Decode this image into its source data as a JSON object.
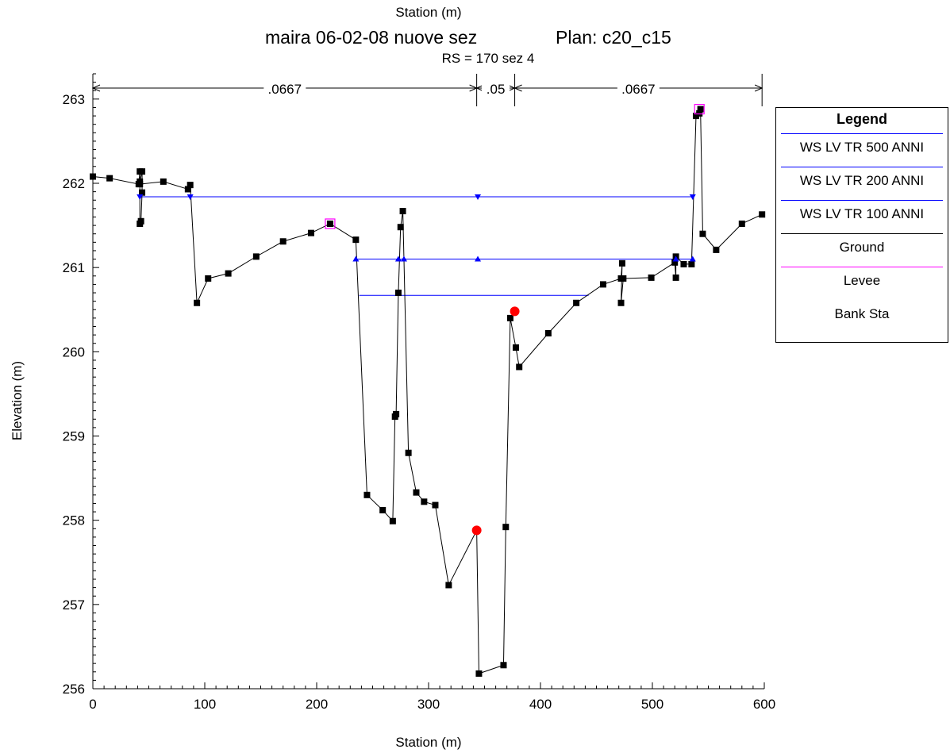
{
  "chart_data": {
    "type": "line",
    "title": "maira 06-02-08 nuove sez",
    "plan": "Plan: c20_c15",
    "subtitle": "RS = 170  sez 4",
    "xlabel": "Station (m)",
    "ylabel": "Elevation (m)",
    "xlim": [
      0,
      600
    ],
    "ylim": [
      256,
      263.3
    ],
    "xticks": [
      "0",
      "100",
      "200",
      "300",
      "400",
      "500",
      "600"
    ],
    "yticks": [
      "256",
      "257",
      "258",
      "259",
      "260",
      "261",
      "262",
      "263"
    ],
    "mannings": [
      {
        "label": ".0667",
        "x0": 0,
        "x1": 343
      },
      {
        "label": ".05",
        "x0": 343,
        "x1": 377
      },
      {
        "label": ".0667",
        "x0": 377,
        "x1": 598
      }
    ],
    "series": [
      {
        "name": "Ground",
        "color": "#000000",
        "marker": "square",
        "x": [
          0,
          15,
          41,
          42,
          42,
          43,
          44,
          44,
          42,
          42,
          63,
          85,
          87,
          93,
          103,
          121,
          146,
          170,
          195,
          212,
          235,
          245,
          259,
          268,
          270,
          271,
          273,
          275,
          277,
          282,
          289,
          296,
          306,
          318,
          343,
          345,
          367,
          369,
          373,
          378,
          381,
          407,
          432,
          456,
          472,
          473,
          472,
          474,
          499,
          520,
          521,
          521,
          528,
          535,
          539,
          542,
          543,
          545,
          557,
          580,
          598
        ],
        "y": [
          262.08,
          262.06,
          261.99,
          262.14,
          261.52,
          261.55,
          261.89,
          262.14,
          262.02,
          261.99,
          262.02,
          261.93,
          261.98,
          260.58,
          260.87,
          260.93,
          261.13,
          261.31,
          261.41,
          261.52,
          261.33,
          258.3,
          258.12,
          257.99,
          259.23,
          259.26,
          260.7,
          261.48,
          261.67,
          258.8,
          258.33,
          258.22,
          258.18,
          257.23,
          257.88,
          256.18,
          256.28,
          257.92,
          260.4,
          260.05,
          259.82,
          260.22,
          260.58,
          260.8,
          260.87,
          261.05,
          260.58,
          260.87,
          260.88,
          261.06,
          260.88,
          261.13,
          261.04,
          261.04,
          262.8,
          262.83,
          262.88,
          261.4,
          261.21,
          261.52,
          261.63
        ]
      },
      {
        "name": "WS LV TR 500 ANNI",
        "color": "#0000ff",
        "marker": "triangle-down",
        "x": [
          42,
          87,
          344,
          536
        ],
        "y": [
          261.84,
          261.84,
          261.84,
          261.84
        ],
        "line": [
          42,
          536
        ]
      },
      {
        "name": "WS LV TR 200 ANNI",
        "color": "#0000ff",
        "marker": "triangle-up",
        "x": [
          235,
          273,
          278,
          344,
          521,
          536
        ],
        "y": [
          261.1,
          261.1,
          261.1,
          261.1,
          261.1,
          261.1
        ],
        "line": [
          235,
          536
        ]
      },
      {
        "name": "WS LV TR 100 ANNI",
        "color": "#0000ff",
        "marker": "none",
        "x": [
          238,
          443
        ],
        "y": [
          260.67,
          260.67
        ],
        "line": [
          238,
          443
        ]
      },
      {
        "name": "Levee",
        "color": "#ff00ff",
        "marker": "open-square",
        "x": [
          212,
          542
        ],
        "y": [
          261.52,
          262.88
        ]
      },
      {
        "name": "Bank Sta",
        "color": "#ff0000",
        "marker": "circle",
        "x": [
          343,
          377
        ],
        "y": [
          257.88,
          260.48
        ]
      }
    ]
  },
  "legend": {
    "title": "Legend",
    "items": [
      "WS LV TR 500 ANNI",
      "WS LV TR 200 ANNI",
      "WS LV TR 100 ANNI",
      "Ground",
      "Levee",
      "Bank Sta"
    ]
  }
}
